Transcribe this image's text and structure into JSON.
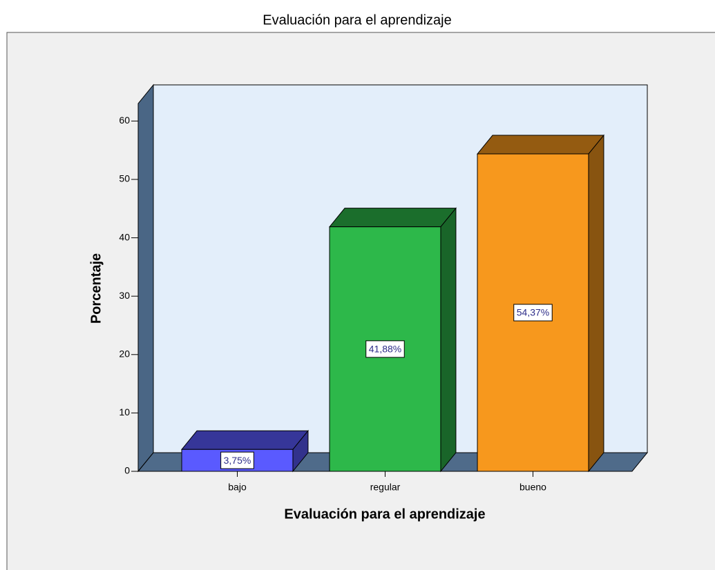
{
  "chart_data": {
    "type": "bar3d",
    "title": "Evaluación para el aprendizaje",
    "x_label": "Evaluación para el aprendizaje",
    "y_label": "Porcentaje",
    "categories": [
      "bajo",
      "regular",
      "bueno"
    ],
    "values": [
      3.75,
      41.88,
      54.37
    ],
    "value_labels": [
      "3,75%",
      "41,88%",
      "54,37%"
    ],
    "colors": [
      "#5a5aff",
      "#2db84a",
      "#f7981d"
    ],
    "ylim": [
      0,
      63
    ],
    "yticks": [
      0,
      10,
      20,
      30,
      40,
      50,
      60
    ]
  }
}
